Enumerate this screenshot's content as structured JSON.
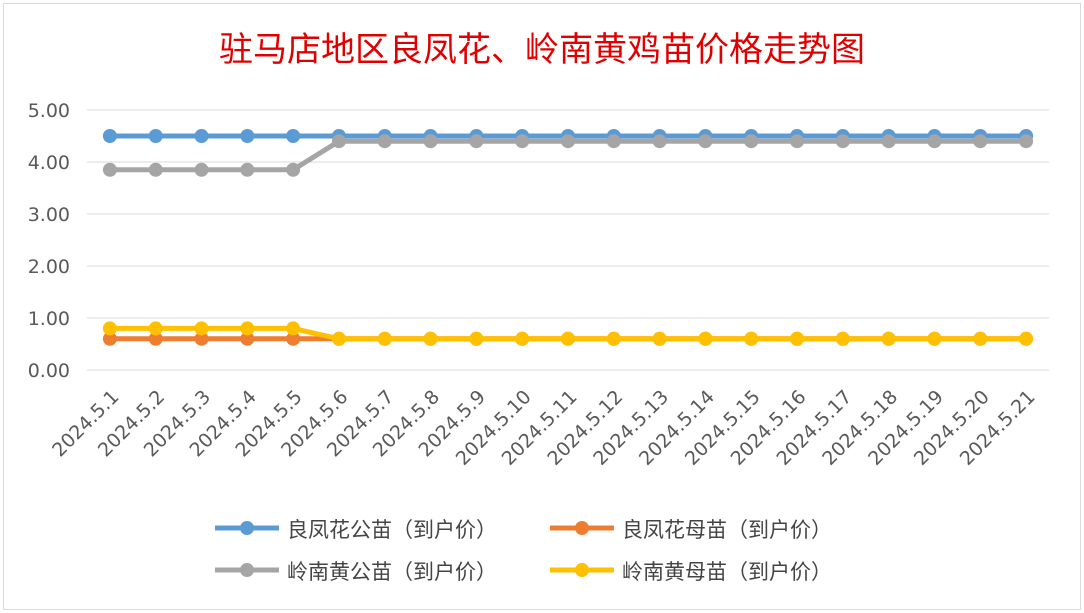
{
  "chart_data": {
    "type": "line",
    "title": "驻马店地区良凤花、岭南黄鸡苗价格走势图",
    "categories": [
      "2024.5.1",
      "2024.5.2",
      "2024.5.3",
      "2024.5.4",
      "2024.5.5",
      "2024.5.6",
      "2024.5.7",
      "2024.5.8",
      "2024.5.9",
      "2024.5.10",
      "2024.5.11",
      "2024.5.12",
      "2024.5.13",
      "2024.5.14",
      "2024.5.15",
      "2024.5.16",
      "2024.5.17",
      "2024.5.18",
      "2024.5.19",
      "2024.5.20",
      "2024.5.21"
    ],
    "ylim": [
      0,
      5
    ],
    "yticks": [
      "0.00",
      "1.00",
      "2.00",
      "3.00",
      "4.00",
      "5.00"
    ],
    "grid": true,
    "legend_position": "bottom",
    "series": [
      {
        "name": "良凤花公苗（到户价）",
        "color": "#5b9bd5",
        "values": [
          4.5,
          4.5,
          4.5,
          4.5,
          4.5,
          4.5,
          4.5,
          4.5,
          4.5,
          4.5,
          4.5,
          4.5,
          4.5,
          4.5,
          4.5,
          4.5,
          4.5,
          4.5,
          4.5,
          4.5,
          4.5
        ]
      },
      {
        "name": "良凤花母苗（到户价）",
        "color": "#ed7d31",
        "values": [
          0.6,
          0.6,
          0.6,
          0.6,
          0.6,
          0.6,
          0.6,
          0.6,
          0.6,
          0.6,
          0.6,
          0.6,
          0.6,
          0.6,
          0.6,
          0.6,
          0.6,
          0.6,
          0.6,
          0.6,
          0.6
        ]
      },
      {
        "name": "岭南黄公苗（到户价）",
        "color": "#a5a5a5",
        "values": [
          3.85,
          3.85,
          3.85,
          3.85,
          3.85,
          4.4,
          4.4,
          4.4,
          4.4,
          4.4,
          4.4,
          4.4,
          4.4,
          4.4,
          4.4,
          4.4,
          4.4,
          4.4,
          4.4,
          4.4,
          4.4
        ]
      },
      {
        "name": "岭南黄母苗（到户价）",
        "color": "#ffc000",
        "values": [
          0.8,
          0.8,
          0.8,
          0.8,
          0.8,
          0.6,
          0.6,
          0.6,
          0.6,
          0.6,
          0.6,
          0.6,
          0.6,
          0.6,
          0.6,
          0.6,
          0.6,
          0.6,
          0.6,
          0.6,
          0.6
        ]
      }
    ]
  }
}
